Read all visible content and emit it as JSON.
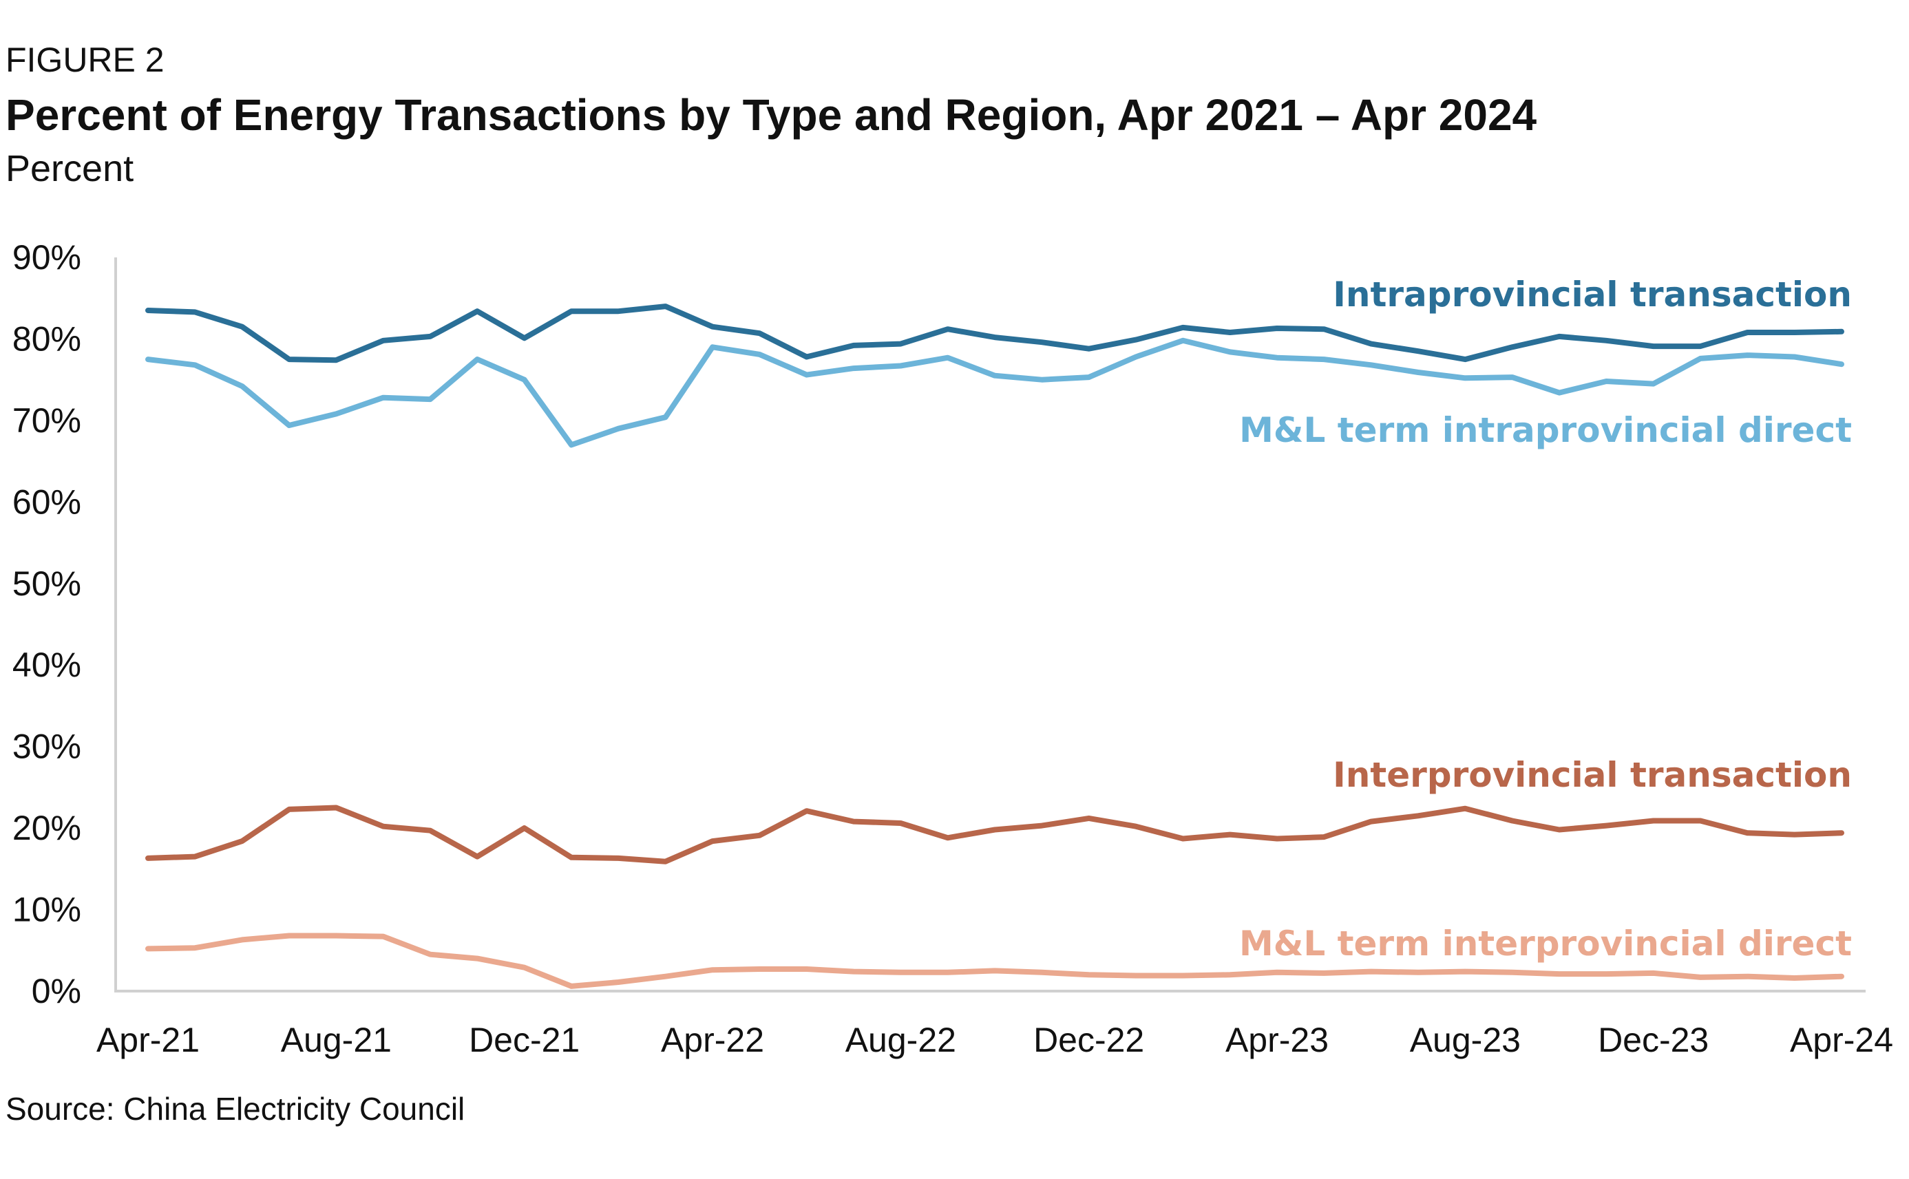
{
  "figure_label": "FIGURE 2",
  "title": "Percent of Energy Transactions by Type and Region, Apr 2021 – Apr 2024",
  "subtitle": "Percent",
  "source": "Source: China Electricity Council",
  "chart_data": {
    "type": "line",
    "ylabel": "Percent",
    "ylim": [
      0,
      90
    ],
    "yticks": [
      "0%",
      "10%",
      "20%",
      "30%",
      "40%",
      "50%",
      "60%",
      "70%",
      "80%",
      "90%"
    ],
    "xtick_labels": [
      "Apr-21",
      "Aug-21",
      "Dec-21",
      "Apr-22",
      "Aug-22",
      "Dec-22",
      "Apr-23",
      "Aug-23",
      "Dec-23",
      "Apr-24"
    ],
    "x": [
      "Apr-21",
      "May-21",
      "Jun-21",
      "Jul-21",
      "Aug-21",
      "Sep-21",
      "Oct-21",
      "Nov-21",
      "Dec-21",
      "Jan-22",
      "Feb-22",
      "Mar-22",
      "Apr-22",
      "May-22",
      "Jun-22",
      "Jul-22",
      "Aug-22",
      "Sep-22",
      "Oct-22",
      "Nov-22",
      "Dec-22",
      "Jan-23",
      "Feb-23",
      "Mar-23",
      "Apr-23",
      "May-23",
      "Jun-23",
      "Jul-23",
      "Aug-23",
      "Sep-23",
      "Oct-23",
      "Nov-23",
      "Dec-23",
      "Jan-24",
      "Feb-24",
      "Mar-24",
      "Apr-24"
    ],
    "grid": false,
    "legend": "inline labels at right end of lines",
    "series": [
      {
        "name": "Intraprovincial transaction",
        "color": "#2a6f97",
        "values": [
          83.5,
          83.3,
          81.5,
          77.5,
          77.4,
          79.8,
          80.3,
          83.4,
          80.1,
          83.4,
          83.4,
          84.0,
          81.5,
          80.7,
          77.8,
          79.2,
          79.4,
          81.2,
          80.2,
          79.6,
          78.8,
          79.9,
          81.4,
          80.8,
          81.3,
          81.2,
          79.4,
          78.5,
          77.5,
          79.0,
          80.3,
          79.8,
          79.1,
          79.1,
          80.8,
          80.8,
          80.9
        ]
      },
      {
        "name": "M&L term intraprovincial direct",
        "color": "#6cb4d9",
        "values": [
          77.5,
          76.8,
          74.2,
          69.4,
          70.8,
          72.8,
          72.6,
          77.5,
          75.0,
          67.0,
          69.0,
          70.4,
          79.0,
          78.1,
          75.6,
          76.4,
          76.7,
          77.7,
          75.5,
          75.0,
          75.3,
          77.8,
          79.8,
          78.4,
          77.7,
          77.5,
          76.8,
          75.9,
          75.2,
          75.3,
          73.4,
          74.8,
          74.5,
          77.6,
          78.0,
          77.8,
          76.9
        ]
      },
      {
        "name": "Interprovincial transaction",
        "color": "#b8664a",
        "values": [
          16.3,
          16.5,
          18.4,
          22.3,
          22.5,
          20.2,
          19.7,
          16.5,
          20.0,
          16.4,
          16.3,
          15.9,
          18.4,
          19.1,
          22.1,
          20.8,
          20.6,
          18.8,
          19.8,
          20.3,
          21.2,
          20.2,
          18.7,
          19.2,
          18.7,
          18.9,
          20.8,
          21.5,
          22.4,
          20.9,
          19.8,
          20.3,
          20.9,
          20.9,
          19.4,
          19.2,
          19.4
        ]
      },
      {
        "name": "M&L term interprovincial direct",
        "color": "#eaa88e",
        "values": [
          5.2,
          5.3,
          6.3,
          6.8,
          6.8,
          6.7,
          4.5,
          4.0,
          2.9,
          0.6,
          1.1,
          1.8,
          2.6,
          2.7,
          2.7,
          2.4,
          2.3,
          2.3,
          2.5,
          2.3,
          2.0,
          1.9,
          1.9,
          2.0,
          2.3,
          2.2,
          2.4,
          2.3,
          2.4,
          2.3,
          2.1,
          2.1,
          2.2,
          1.7,
          1.8,
          1.6,
          1.8
        ]
      }
    ]
  }
}
